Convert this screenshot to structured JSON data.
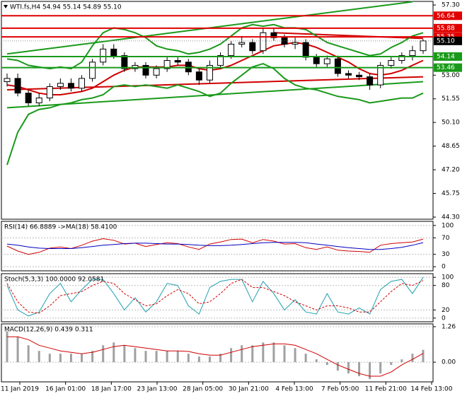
{
  "chart_data": [
    {
      "type": "candlestick",
      "title": "WTI.fs,H4  54.94 55.14 54.89 55.10",
      "ylim": [
        44.17,
        57.52
      ],
      "yticks": [
        {
          "value": 57.3,
          "label": "57.30"
        },
        {
          "value": 53,
          "label": "53.00"
        },
        51.55,
        {
          "value": 50.1,
          "label": "50.10"
        },
        48.65,
        {
          "value": 47.2,
          "label": "47.20"
        },
        45.75,
        {
          "value": 44.3,
          "label": "44.30"
        }
      ],
      "open": [
        52.6,
        52.8,
        51.9,
        51.3,
        51.6,
        52.3,
        52.5,
        52.2,
        52.8,
        53.8,
        54.6,
        54.2,
        53.4,
        53.6,
        53.0,
        53.4,
        53.9,
        53.8,
        53.2,
        52.7,
        53.6,
        54.2,
        54.9,
        55.0,
        54.5,
        55.6,
        55.3,
        54.9,
        55.0,
        54.1,
        53.7,
        54.0,
        53.1,
        53.0,
        52.9,
        52.4,
        53.6,
        53.9,
        54.2,
        54.5
      ],
      "high": [
        53.1,
        53.1,
        52.1,
        51.9,
        52.5,
        52.8,
        52.8,
        53.0,
        54.0,
        54.9,
        54.9,
        54.4,
        53.8,
        53.8,
        53.6,
        54.1,
        54.1,
        54.0,
        53.4,
        53.9,
        54.4,
        55.1,
        55.4,
        55.2,
        55.9,
        55.9,
        55.5,
        55.3,
        55.2,
        54.3,
        54.2,
        54.2,
        53.3,
        53.2,
        53.1,
        53.8,
        54.1,
        54.4,
        54.8,
        55.2
      ],
      "low": [
        52.3,
        51.7,
        51.1,
        51.1,
        51.4,
        52.1,
        52.0,
        52.0,
        52.6,
        53.6,
        54.0,
        53.2,
        53.2,
        52.8,
        52.8,
        53.2,
        53.6,
        53.0,
        52.4,
        52.5,
        53.4,
        54.0,
        54.7,
        54.3,
        54.3,
        55.1,
        54.7,
        54.6,
        53.9,
        53.5,
        53.5,
        52.9,
        52.8,
        52.7,
        52.1,
        52.2,
        53.4,
        53.7,
        53.9,
        54.3
      ],
      "close": [
        52.8,
        51.9,
        51.3,
        51.6,
        52.3,
        52.5,
        52.2,
        52.8,
        53.8,
        54.6,
        54.2,
        53.4,
        53.6,
        53.0,
        53.4,
        53.9,
        53.8,
        53.2,
        52.7,
        53.6,
        54.2,
        54.9,
        55.0,
        54.5,
        55.6,
        55.3,
        54.9,
        55.0,
        54.1,
        53.7,
        54.0,
        53.1,
        53.0,
        52.9,
        52.4,
        53.6,
        53.9,
        54.2,
        54.5,
        55.1
      ],
      "series": [
        {
          "color": "#1a9a1a",
          "values": [
            54.0,
            53.9,
            53.6,
            53.5,
            53.4,
            53.5,
            53.4,
            53.8,
            54.8,
            55.6,
            55.9,
            55.8,
            55.6,
            55.3,
            54.8,
            54.6,
            54.5,
            54.3,
            54.4,
            54.6,
            54.9,
            55.4,
            55.9,
            56.1,
            56.0,
            56.1,
            55.9,
            55.9,
            55.8,
            55.4,
            55.0,
            54.8,
            54.6,
            54.4,
            54.2,
            54.3,
            54.7,
            55.0,
            55.4,
            55.6
          ]
        },
        {
          "color": "#1a9a1a",
          "values": [
            47.5,
            49.5,
            50.6,
            50.9,
            51.0,
            51.2,
            51.3,
            51.5,
            51.6,
            51.8,
            52.3,
            52.4,
            52.3,
            52.4,
            52.3,
            52.2,
            52.4,
            52.2,
            52.0,
            51.7,
            51.9,
            52.5,
            53.0,
            53.5,
            53.7,
            53.4,
            52.8,
            52.4,
            52.2,
            52.1,
            51.9,
            51.7,
            51.6,
            51.5,
            51.3,
            51.4,
            51.5,
            51.6,
            51.6,
            51.9
          ]
        },
        {
          "color": "#d00000",
          "values": [
            52.4,
            52.3,
            52.1,
            51.9,
            51.8,
            51.8,
            51.9,
            52.0,
            52.2,
            52.6,
            53.0,
            53.3,
            53.5,
            53.5,
            53.5,
            53.5,
            53.6,
            53.6,
            53.4,
            53.3,
            53.4,
            53.6,
            53.9,
            54.2,
            54.5,
            54.8,
            54.9,
            55.0,
            54.9,
            54.7,
            54.4,
            54.1,
            53.8,
            53.4,
            53.1,
            53.0,
            53.1,
            53.3,
            53.6,
            53.9
          ]
        }
      ],
      "trendlines": [
        {
          "color": "#1a9a1a",
          "x": [
            0,
            38
          ],
          "values": [
            54.3,
            57.5
          ]
        },
        {
          "color": "#1a9a1a",
          "x": [
            0,
            39
          ],
          "values": [
            51.0,
            52.6
          ]
        },
        {
          "color": "#d00000",
          "x": [
            0,
            39
          ],
          "values": [
            52.1,
            52.9
          ]
        },
        {
          "color": "#d00000",
          "x": [
            25,
            39
          ],
          "values": [
            55.6,
            55.25
          ]
        }
      ],
      "levels": [
        {
          "value": 56.64,
          "color": "#e00000"
        },
        {
          "value": 55.88,
          "color": "#e00000"
        },
        {
          "value": 55.35,
          "color": "#e00000"
        },
        {
          "value": 54.14,
          "color": "#1a9a1a"
        },
        {
          "value": 53.46,
          "color": "#1a9a1a"
        }
      ],
      "current_price": {
        "value": 55.1,
        "label": "55.10"
      },
      "xlabels": [
        "11 Jan 2019",
        "16 Jan 01:00",
        "18 Jan 17:00",
        "23 Jan 13:00",
        "28 Jan 05:00",
        "30 Jan 21:00",
        "4 Feb 13:00",
        "7 Feb 05:00",
        "11 Feb 21:00",
        "14 Feb 13:00"
      ]
    },
    {
      "type": "line",
      "title": "RSI(14) 66.8889  ->MA(18) 58.4100",
      "ylim": [
        -10,
        110
      ],
      "yticks": [
        100,
        70,
        30,
        0
      ],
      "series": [
        {
          "color": "#d00000",
          "values": [
            50,
            38,
            30,
            35,
            45,
            48,
            44,
            52,
            62,
            68,
            64,
            55,
            57,
            49,
            54,
            58,
            56,
            48,
            42,
            55,
            60,
            66,
            67,
            58,
            66,
            62,
            55,
            56,
            46,
            42,
            48,
            40,
            38,
            37,
            35,
            52,
            56,
            58,
            60,
            66.8889
          ]
        },
        {
          "color": "#0000c0",
          "values": [
            55,
            52,
            48,
            45,
            44,
            44,
            44,
            46,
            49,
            52,
            54,
            56,
            57,
            57,
            56,
            55,
            55,
            54,
            52,
            51,
            51,
            52,
            54,
            56,
            58,
            59,
            59,
            59,
            58,
            55,
            52,
            49,
            46,
            44,
            42,
            42,
            44,
            47,
            52,
            58.41
          ]
        }
      ]
    },
    {
      "type": "line",
      "title": "Stoch(5,3,3) 100.0000 92.0581",
      "ylim": [
        -9,
        109
      ],
      "yticks": [
        100,
        80,
        20,
        0
      ],
      "series": [
        {
          "color": "#20a0b0",
          "values": [
            80,
            20,
            5,
            15,
            60,
            85,
            40,
            70,
            95,
            95,
            60,
            20,
            50,
            15,
            40,
            85,
            80,
            30,
            10,
            75,
            90,
            95,
            95,
            40,
            90,
            60,
            20,
            45,
            15,
            10,
            60,
            15,
            10,
            25,
            10,
            70,
            90,
            95,
            60,
            100
          ]
        },
        {
          "color": "#d00000",
          "dashed": true,
          "values": [
            85,
            40,
            15,
            12,
            30,
            55,
            60,
            65,
            80,
            90,
            85,
            60,
            45,
            30,
            35,
            55,
            70,
            60,
            35,
            40,
            60,
            85,
            95,
            75,
            75,
            65,
            55,
            40,
            30,
            20,
            30,
            30,
            25,
            15,
            15,
            40,
            65,
            85,
            80,
            92.0581
          ]
        }
      ]
    },
    {
      "type": "histogram-line",
      "title": "MACD(12,26,9) 0.439 0.311",
      "ylim": [
        -0.7,
        1.36
      ],
      "yticks": [
        1.26,
        {
          "value": 0,
          "label": "0.00"
        }
      ],
      "series": [
        {
          "color": "#a0a0a0",
          "values": [
            1.1,
            0.9,
            0.6,
            0.4,
            0.3,
            0.3,
            0.3,
            0.3,
            0.4,
            0.6,
            0.7,
            0.6,
            0.5,
            0.4,
            0.4,
            0.4,
            0.4,
            0.3,
            0.2,
            0.2,
            0.3,
            0.5,
            0.6,
            0.6,
            0.7,
            0.7,
            0.6,
            0.5,
            0.3,
            0.1,
            -0.1,
            -0.3,
            -0.4,
            -0.5,
            -0.6,
            -0.4,
            -0.1,
            0.1,
            0.3,
            0.439
          ]
        },
        {
          "color": "#d00000",
          "values": [
            0.9,
            0.9,
            0.8,
            0.6,
            0.5,
            0.4,
            0.35,
            0.3,
            0.35,
            0.45,
            0.55,
            0.6,
            0.55,
            0.5,
            0.45,
            0.4,
            0.4,
            0.38,
            0.3,
            0.25,
            0.25,
            0.35,
            0.45,
            0.55,
            0.6,
            0.65,
            0.65,
            0.6,
            0.45,
            0.3,
            0.1,
            -0.1,
            -0.25,
            -0.4,
            -0.5,
            -0.5,
            -0.35,
            -0.1,
            0.1,
            0.311
          ]
        }
      ]
    }
  ]
}
